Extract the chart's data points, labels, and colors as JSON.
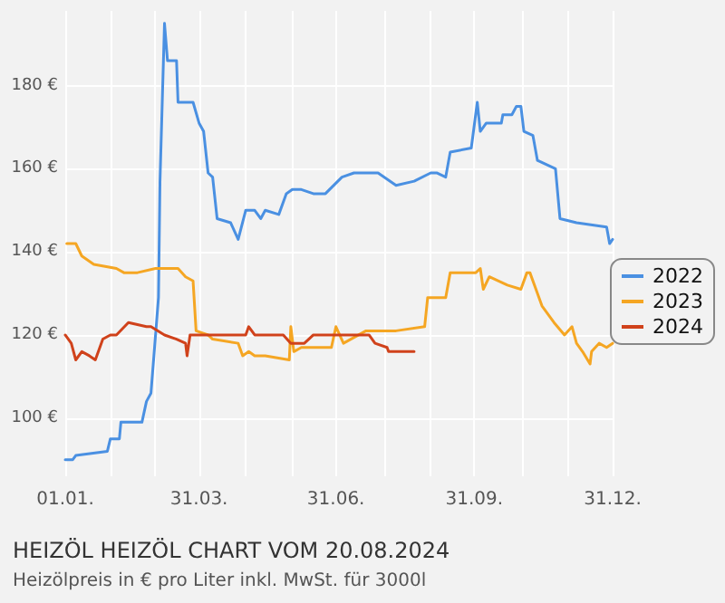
{
  "chart_data": {
    "type": "line",
    "title": "HEIZÖL HEIZÖL CHART VOM 20.08.2024",
    "subtitle": "Heizölpreis in € pro Liter inkl. MwSt. für 3000l",
    "xlim": [
      "--01-01",
      "--12-31"
    ],
    "xticks": [
      {
        "value": "--01-01",
        "label": "01.01."
      },
      {
        "value": "--02-01",
        "label": null
      },
      {
        "value": "--03-01",
        "label": null
      },
      {
        "value": "--03-31",
        "label": "31.03."
      },
      {
        "value": "--05-01",
        "label": null
      },
      {
        "value": "--06-01",
        "label": null
      },
      {
        "value": "--06-30",
        "label": "31.06."
      },
      {
        "value": "--08-01",
        "label": null
      },
      {
        "value": "--09-01",
        "label": null
      },
      {
        "value": "--09-30",
        "label": "31.09."
      },
      {
        "value": "--11-01",
        "label": null
      },
      {
        "value": "--12-01",
        "label": null
      },
      {
        "value": "--12-31",
        "label": "31.12."
      }
    ],
    "ylim": [
      86,
      198
    ],
    "yticks": [
      {
        "value": 100,
        "label": "100 €"
      },
      {
        "value": 120,
        "label": "120 €"
      },
      {
        "value": 140,
        "label": "140 €"
      },
      {
        "value": 160,
        "label": "160 €"
      },
      {
        "value": 180,
        "label": "180 €"
      }
    ],
    "grid": true,
    "legend": "right",
    "marker": "none",
    "line_style": "solid",
    "series": [
      {
        "name": "2022",
        "color": "#4a90e2",
        "x": [
          "--01-01",
          "--01-06",
          "--01-08",
          "--01-29",
          "--01-31",
          "--02-06",
          "--02-07",
          "--02-21",
          "--02-24",
          "--02-27",
          "--03-04",
          "--03-05",
          "--03-08",
          "--03-10",
          "--03-16",
          "--03-17",
          "--03-27",
          "--03-31",
          "--04-03",
          "--04-06",
          "--04-09",
          "--04-12",
          "--04-21",
          "--04-26",
          "--05-01",
          "--05-07",
          "--05-11",
          "--05-14",
          "--05-23",
          "--05-28",
          "--06-01",
          "--06-07",
          "--06-15",
          "--06-23",
          "--07-04",
          "--07-12",
          "--07-20",
          "--07-28",
          "--08-09",
          "--08-21",
          "--09-01",
          "--09-05",
          "--09-11",
          "--09-14",
          "--09-28",
          "--10-02",
          "--10-04",
          "--10-08",
          "--10-18",
          "--10-19",
          "--10-25",
          "--10-28",
          "--10-31",
          "--11-02",
          "--11-08",
          "--11-11",
          "--11-23",
          "--11-26",
          "--12-07",
          "--12-27",
          "--12-29",
          "--12-31"
        ],
        "values": [
          90,
          90,
          91,
          92,
          95,
          95,
          99,
          99,
          104,
          106,
          129,
          157,
          195,
          186,
          186,
          176,
          176,
          171,
          169,
          159,
          158,
          148,
          147,
          143,
          150,
          150,
          148,
          150,
          149,
          154,
          155,
          155,
          154,
          154,
          158,
          159,
          159,
          159,
          156,
          157,
          159,
          159,
          158,
          164,
          165,
          176,
          169,
          171,
          171,
          173,
          173,
          175,
          175,
          169,
          168,
          162,
          160,
          148,
          147,
          146,
          142,
          143
        ]
      },
      {
        "name": "2023",
        "color": "#f5a623",
        "x": [
          "--01-02",
          "--01-08",
          "--01-12",
          "--01-20",
          "--02-04",
          "--02-09",
          "--02-12",
          "--02-18",
          "--03-02",
          "--03-17",
          "--03-22",
          "--03-27",
          "--03-29",
          "--04-06",
          "--04-09",
          "--04-26",
          "--04-29",
          "--05-03",
          "--05-07",
          "--05-14",
          "--05-30",
          "--05-31",
          "--06-02",
          "--06-07",
          "--06-27",
          "--06-30",
          "--07-05",
          "--07-20",
          "--08-09",
          "--08-28",
          "--08-30",
          "--09-11",
          "--09-14",
          "--10-01",
          "--10-04",
          "--10-06",
          "--10-10",
          "--10-22",
          "--10-31",
          "--11-04",
          "--11-06",
          "--11-11",
          "--11-14",
          "--11-22",
          "--11-29",
          "--12-04",
          "--12-07",
          "--12-11",
          "--12-16",
          "--12-17",
          "--12-22",
          "--12-27",
          "--12-31"
        ],
        "values": [
          142,
          142,
          139,
          137,
          136,
          135,
          135,
          135,
          136,
          136,
          134,
          133,
          121,
          120,
          119,
          118,
          115,
          116,
          115,
          115,
          114,
          122,
          116,
          117,
          117,
          122,
          118,
          121,
          121,
          122,
          129,
          129,
          135,
          135,
          136,
          131,
          134,
          132,
          131,
          135,
          135,
          130,
          127,
          123,
          120,
          122,
          118,
          116,
          113,
          116,
          118,
          117,
          118
        ]
      },
      {
        "name": "2024",
        "color": "#d0421b",
        "x": [
          "--01-01",
          "--01-05",
          "--01-08",
          "--01-12",
          "--01-17",
          "--01-21",
          "--01-26",
          "--01-31",
          "--02-04",
          "--02-12",
          "--02-24",
          "--02-27",
          "--03-08",
          "--03-16",
          "--03-22",
          "--03-23",
          "--03-25",
          "--04-02",
          "--05-01",
          "--05-03",
          "--05-07",
          "--05-26",
          "--05-31",
          "--06-09",
          "--06-15",
          "--07-05",
          "--07-22",
          "--07-26",
          "--08-03",
          "--08-04",
          "--08-21"
        ],
        "values": [
          120,
          118,
          114,
          116,
          115,
          114,
          119,
          120,
          120,
          123,
          122,
          122,
          120,
          119,
          118,
          115,
          120,
          120,
          120,
          122,
          120,
          120,
          118,
          118,
          120,
          120,
          120,
          118,
          117,
          116,
          116
        ]
      }
    ]
  }
}
